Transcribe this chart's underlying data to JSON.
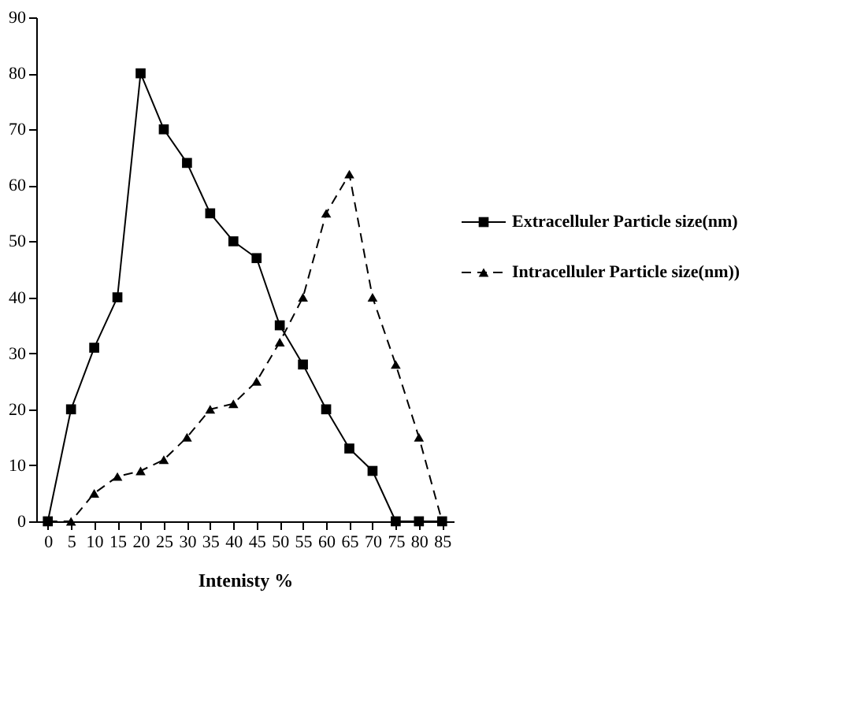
{
  "chart_data": {
    "type": "line",
    "xlabel": "Intenisty %",
    "categories": [
      "0",
      "5",
      "10",
      "15",
      "20",
      "25",
      "30",
      "35",
      "40",
      "45",
      "50",
      "55",
      "60",
      "65",
      "70",
      "75",
      "80",
      "85"
    ],
    "series": [
      {
        "name": "Extracelluler  Particle size(nm)",
        "color": "#000000",
        "marker": "square",
        "line_style": "solid",
        "values": [
          0,
          20,
          31,
          40,
          80,
          70,
          64,
          55,
          50,
          47,
          35,
          28,
          20,
          13,
          9,
          0,
          0,
          0
        ]
      },
      {
        "name": "Intracelluler Particle size(nm))",
        "color": "#000000",
        "marker": "triangle",
        "line_style": "dashed",
        "values": [
          0,
          0,
          5,
          8,
          9,
          11,
          15,
          20,
          21,
          25,
          32,
          40,
          55,
          62,
          40,
          28,
          15,
          0
        ]
      }
    ],
    "ylim": [
      0,
      90
    ],
    "yticks": [
      0,
      10,
      20,
      30,
      40,
      50,
      60,
      70,
      80,
      90
    ],
    "grid": false,
    "legend": "right"
  }
}
